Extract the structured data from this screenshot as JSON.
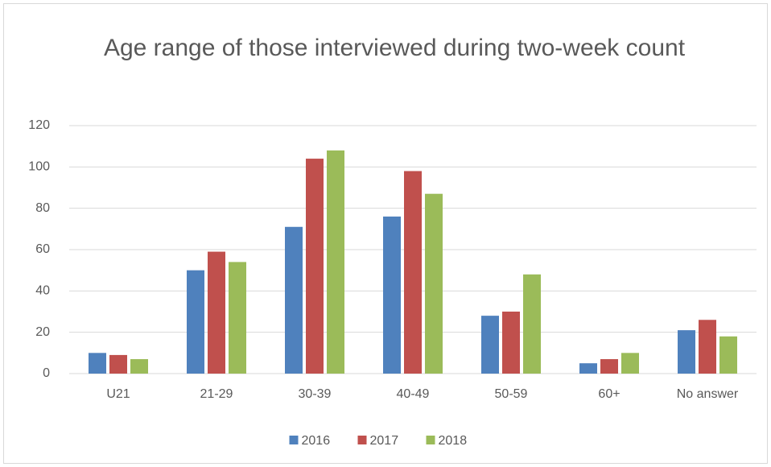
{
  "chart_data": {
    "type": "bar",
    "title": "Age range of those interviewed during two-week count",
    "categories": [
      "U21",
      "21-29",
      "30-39",
      "40-49",
      "50-59",
      "60+",
      "No answer"
    ],
    "series": [
      {
        "name": "2016",
        "color": "#4f81bd",
        "values": [
          10,
          50,
          71,
          76,
          28,
          5,
          21
        ]
      },
      {
        "name": "2017",
        "color": "#c0504d",
        "values": [
          9,
          59,
          104,
          98,
          30,
          7,
          26
        ]
      },
      {
        "name": "2018",
        "color": "#9bbb59",
        "values": [
          7,
          54,
          108,
          87,
          48,
          10,
          18
        ]
      }
    ],
    "ylim": [
      0,
      120
    ],
    "yticks": [
      0,
      20,
      40,
      60,
      80,
      100,
      120
    ],
    "grid": true,
    "legend": "bottom"
  }
}
